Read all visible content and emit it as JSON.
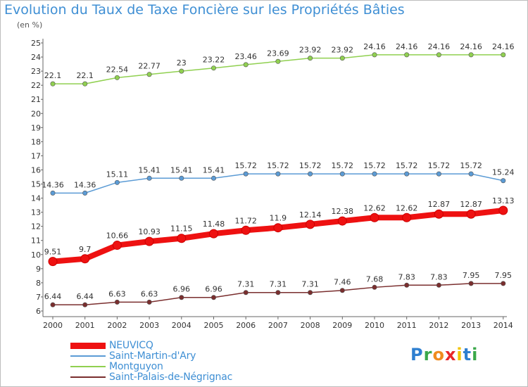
{
  "title": "Evolution du Taux de Taxe Foncière sur les Propriétés Bâties",
  "unit_label": "(en %)",
  "chart_data": {
    "type": "line",
    "title": "Evolution du Taux de Taxe Foncière sur les Propriétés Bâties",
    "ylabel": "(en %)",
    "ylim": [
      6,
      25
    ],
    "yticks": [
      6,
      7,
      8,
      9,
      10,
      11,
      12,
      13,
      14,
      15,
      16,
      17,
      18,
      19,
      20,
      21,
      22,
      23,
      24,
      25
    ],
    "x": [
      "2000",
      "2001",
      "2002",
      "2003",
      "2004",
      "2005",
      "2006",
      "2007",
      "2008",
      "2009",
      "2010",
      "2011",
      "2012",
      "2013",
      "2014"
    ],
    "series": [
      {
        "name": "NEUVICQ",
        "color": "#ee1111",
        "values": [
          9.51,
          9.7,
          10.66,
          10.93,
          11.15,
          11.48,
          11.72,
          11.9,
          12.14,
          12.38,
          12.62,
          12.62,
          12.87,
          12.87,
          13.13
        ]
      },
      {
        "name": "Saint-Martin-d'Ary",
        "color": "#5b9bd5",
        "values": [
          14.36,
          14.36,
          15.11,
          15.41,
          15.41,
          15.41,
          15.72,
          15.72,
          15.72,
          15.72,
          15.72,
          15.72,
          15.72,
          15.72,
          15.24
        ]
      },
      {
        "name": "Montguyon",
        "color": "#90d050",
        "values": [
          22.1,
          22.1,
          22.54,
          22.77,
          23,
          23.22,
          23.46,
          23.69,
          23.92,
          23.92,
          24.16,
          24.16,
          24.16,
          24.16,
          24.16
        ]
      },
      {
        "name": "Saint-Palais-de-Négrignac",
        "color": "#7a2e2e",
        "values": [
          6.44,
          6.44,
          6.63,
          6.63,
          6.96,
          6.96,
          7.31,
          7.31,
          7.31,
          7.46,
          7.68,
          7.83,
          7.83,
          7.95,
          7.95
        ]
      }
    ],
    "grid": false,
    "legend_position": "bottom-left"
  },
  "logo": {
    "letters": [
      "P",
      "r",
      "o",
      "x",
      "i",
      "t",
      "i"
    ],
    "colors": [
      "#2e7fd0",
      "#3aa84a",
      "#f08c1e",
      "#e8262a",
      "#f2c300",
      "#2e7fd0",
      "#3aa84a"
    ]
  }
}
